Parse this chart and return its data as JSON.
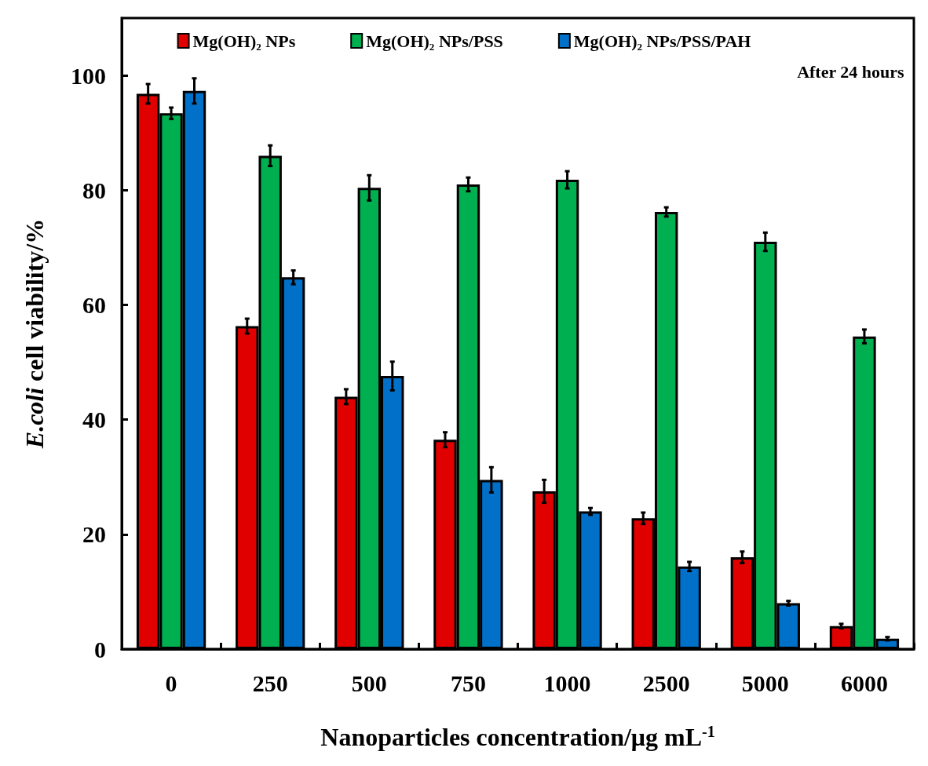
{
  "chart_data": {
    "type": "bar",
    "xlabel": "Nanoparticles concentration/μg mL$^{-1}$",
    "ylabel": "E.coli cell viability/%",
    "categories": [
      "0",
      "250",
      "500",
      "750",
      "1000",
      "2500",
      "5000",
      "6000"
    ],
    "series": [
      {
        "name": "Mg(OH)₂ NPs",
        "color": "#e00000",
        "values": [
          96.8,
          56.3,
          44,
          36.5,
          27.5,
          22.8,
          16,
          4
        ],
        "errors": [
          1.7,
          1.3,
          1.3,
          1.3,
          2,
          1,
          1,
          0.4
        ]
      },
      {
        "name": "Mg(OH)₂ NPs/PSS",
        "color": "#00b050",
        "values": [
          93.4,
          86,
          80.4,
          81,
          81.8,
          76.2,
          71,
          54.5
        ],
        "errors": [
          1,
          1.8,
          2.2,
          1.2,
          1.5,
          0.8,
          1.6,
          1.2
        ]
      },
      {
        "name": "Mg(OH)₂ NPs/PSS/PAH",
        "color": "#0070c8",
        "values": [
          97.3,
          64.8,
          47.6,
          29.5,
          24,
          14.4,
          8,
          1.8
        ],
        "errors": [
          2.2,
          1.2,
          2.5,
          2.2,
          0.6,
          0.8,
          0.4,
          0.3
        ]
      }
    ],
    "ylim": [
      0,
      110
    ],
    "yticks": [
      0,
      20,
      40,
      60,
      80,
      100
    ],
    "legend": "top",
    "grid": false,
    "annotations": [
      "After 24 hours"
    ]
  }
}
